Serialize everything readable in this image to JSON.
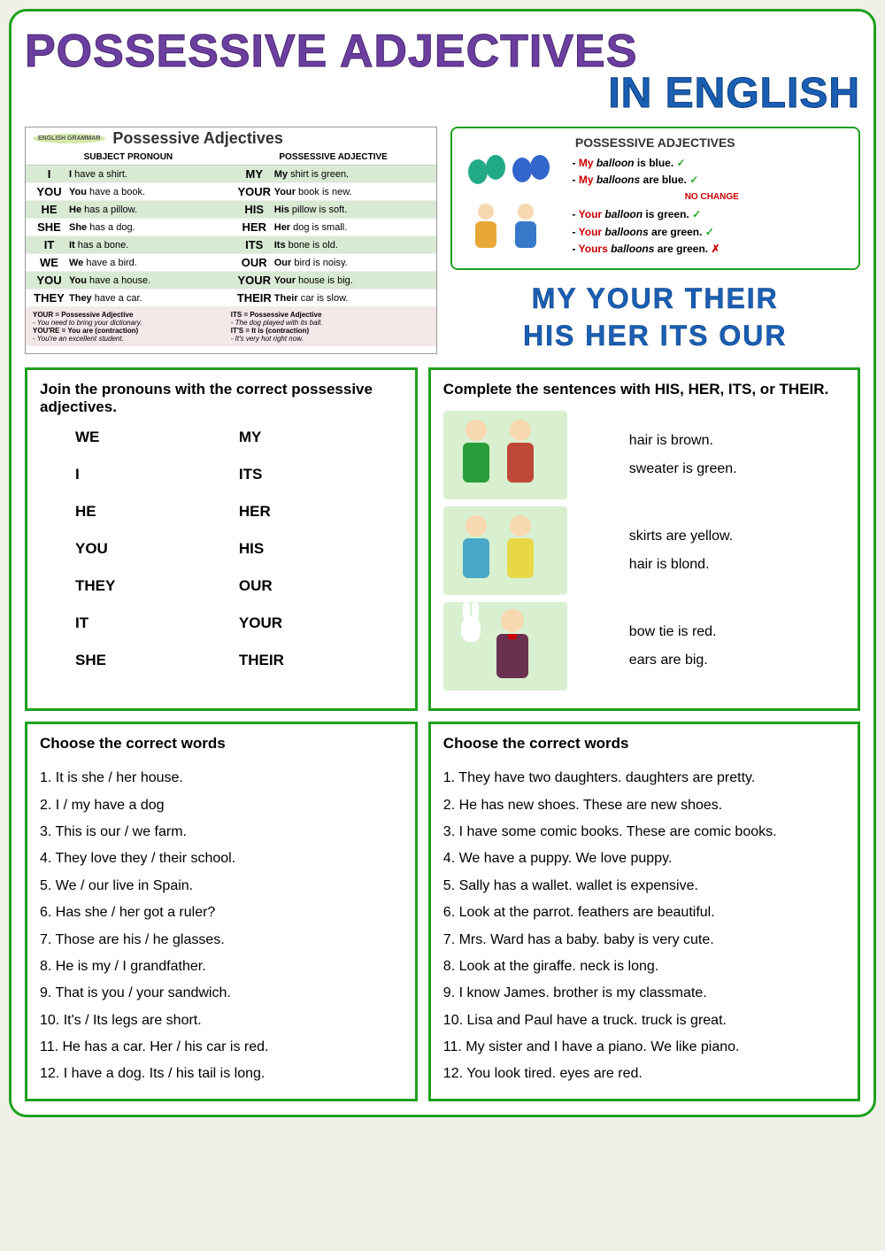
{
  "title_main": "POSSESSIVE ADJECTIVES",
  "title_sub": "IN ENGLISH",
  "grammar_table": {
    "badge": "ENGLISH GRAMMAR",
    "heading": "Possessive Adjectives",
    "col1_head": "SUBJECT PRONOUN",
    "col2_head": "POSSESSIVE ADJECTIVE",
    "rows": [
      {
        "sp": "I",
        "ss": "I have a shirt.",
        "pa": "MY",
        "ps": "My shirt is green."
      },
      {
        "sp": "YOU",
        "ss": "You have a book.",
        "pa": "YOUR",
        "ps": "Your book is new."
      },
      {
        "sp": "HE",
        "ss": "He has a pillow.",
        "pa": "HIS",
        "ps": "His pillow is soft."
      },
      {
        "sp": "SHE",
        "ss": "She has a dog.",
        "pa": "HER",
        "ps": "Her dog is small."
      },
      {
        "sp": "IT",
        "ss": "It has a bone.",
        "pa": "ITS",
        "ps": "Its bone is old."
      },
      {
        "sp": "WE",
        "ss": "We have a bird.",
        "pa": "OUR",
        "ps": "Our bird is noisy."
      },
      {
        "sp": "YOU",
        "ss": "You have a house.",
        "pa": "YOUR",
        "ps": "Your house is big."
      },
      {
        "sp": "THEY",
        "ss": "They have a car.",
        "pa": "THEIR",
        "ps": "Their car is slow."
      }
    ],
    "notes": {
      "left1_b": "YOUR = Possessive Adjective",
      "left1_i": "- You need to bring your dictionary.",
      "left2_b": "YOU'RE = You are (contraction)",
      "left2_i": "- You're an excellent student.",
      "right1_b": "ITS = Possessive Adjective",
      "right1_i": "- The dog played with its ball.",
      "right2_b": "IT'S = It is (contraction)",
      "right2_i": "- It's very hot right now."
    }
  },
  "balloon_card": {
    "title": "POSSESSIVE ADJECTIVES",
    "lines": [
      {
        "pre": "- ",
        "poss": "My",
        "noun": " balloon",
        "rest": " is blue.",
        "mark": "✓"
      },
      {
        "pre": "- ",
        "poss": "My",
        "noun": " balloons",
        "rest": " are blue.",
        "mark": "✓"
      }
    ],
    "nochange": "NO CHANGE",
    "lines2": [
      {
        "pre": "- ",
        "poss": "Your",
        "noun": " balloon",
        "rest": " is green.",
        "mark": "✓"
      },
      {
        "pre": "- ",
        "poss": "Your",
        "noun": " balloons",
        "rest": " are green.",
        "mark": "✓"
      },
      {
        "pre": "- ",
        "poss": "Yours",
        "noun": " balloons",
        "rest": " are green.",
        "mark": "✗"
      }
    ]
  },
  "big_words_line1": "MY  YOUR  THEIR",
  "big_words_line2": "HIS  HER  ITS  OUR",
  "ex1": {
    "instr": "Join the pronouns with the correct possessive adjectives.",
    "left": [
      "WE",
      "I",
      "HE",
      "YOU",
      "THEY",
      "IT",
      "SHE"
    ],
    "right": [
      "MY",
      "ITS",
      "HER",
      "HIS",
      "OUR",
      "YOUR",
      "THEIR"
    ]
  },
  "ex2": {
    "instr": "Complete the sentences with HIS, HER, ITS, or THEIR.",
    "items": [
      {
        "lines": [
          "hair is brown.",
          "sweater is green."
        ]
      },
      {
        "lines": [
          "skirts are yellow.",
          "hair is blond."
        ]
      },
      {
        "lines": [
          "bow tie is red.",
          "ears are big."
        ]
      }
    ]
  },
  "ex3": {
    "instr": "Choose the correct words",
    "items": [
      "It is she  /  her house.",
      "I  /  my have a dog",
      "This is our  /  we farm.",
      "They love they  /  their school.",
      "We  / our live in Spain.",
      "Has she  /  her got a ruler?",
      "Those are his  /  he  glasses.",
      "He is my  /  I  grandfather.",
      "That is you  /  your sandwich.",
      "It's  /  Its legs are short.",
      "He has a car. Her  /  his car is red.",
      "I have a dog. Its  /  his tail is long."
    ]
  },
  "ex4": {
    "instr": "Choose the correct words",
    "items": [
      "They have two daughters.          daughters are pretty.",
      "He has new shoes. These are         new shoes.",
      "I have some comic books. These are         comic books.",
      "We have a puppy. We love          puppy.",
      "Sally has a wallet.                          wallet is expensive.",
      "Look at the parrot.               feathers are beautiful.",
      "Mrs. Ward has a baby.          baby is very cute.",
      "Look at the giraffe.          neck is long.",
      "I know James.              brother is my classmate.",
      "Lisa and Paul have a truck.              truck is great.",
      "My sister and I have a piano. We like              piano.",
      "You look tired.             eyes are red."
    ]
  },
  "colors": {
    "border_green": "#1fa01f",
    "purple": "#6b3fa0",
    "blue": "#1a5fb4",
    "row_green": "#d8ead4",
    "note_pink": "#f5e8e8",
    "badge_bg": "#d4e8a8"
  }
}
